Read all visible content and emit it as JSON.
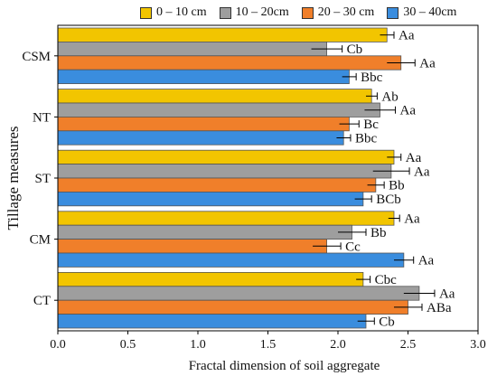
{
  "chart_data": {
    "type": "bar",
    "orientation": "horizontal",
    "title": "",
    "xlabel": "Fractal dimension of soil aggregate",
    "ylabel": "Tillage measures",
    "xlim": [
      0.0,
      3.0
    ],
    "xticks": [
      "0.0",
      "0.5",
      "1.0",
      "1.5",
      "2.0",
      "2.5",
      "3.0"
    ],
    "categories": [
      "CSM",
      "NT",
      "ST",
      "CM",
      "CT"
    ],
    "legend_position": "top",
    "grid": false,
    "series": [
      {
        "name": "0 – 10 cm",
        "color": "#F2C500",
        "values": [
          2.35,
          2.24,
          2.4,
          2.4,
          2.18
        ],
        "errors": [
          0.05,
          0.04,
          0.05,
          0.04,
          0.05
        ],
        "labels": [
          "Aa",
          "Ab",
          "Aa",
          "Aa",
          "Cbc"
        ]
      },
      {
        "name": "10 – 20cm",
        "color": "#9E9E9E",
        "values": [
          1.92,
          2.3,
          2.38,
          2.1,
          2.58
        ],
        "errors": [
          0.11,
          0.11,
          0.13,
          0.1,
          0.11
        ],
        "labels": [
          "Cb",
          "Aa",
          "Aa",
          "Bb",
          "Aa"
        ]
      },
      {
        "name": "20 – 30 cm",
        "color": "#F07F2A",
        "values": [
          2.45,
          2.08,
          2.27,
          1.92,
          2.5
        ],
        "errors": [
          0.1,
          0.07,
          0.06,
          0.1,
          0.1
        ],
        "labels": [
          "Aa",
          "Bc",
          "Bb",
          "Cc",
          "ABa"
        ]
      },
      {
        "name": "30 – 40cm",
        "color": "#3A8DDE",
        "values": [
          2.08,
          2.04,
          2.18,
          2.47,
          2.2
        ],
        "errors": [
          0.05,
          0.05,
          0.06,
          0.07,
          0.06
        ],
        "labels": [
          "Bbc",
          "Bbc",
          "BCb",
          "Aa",
          "Cb"
        ]
      }
    ]
  }
}
